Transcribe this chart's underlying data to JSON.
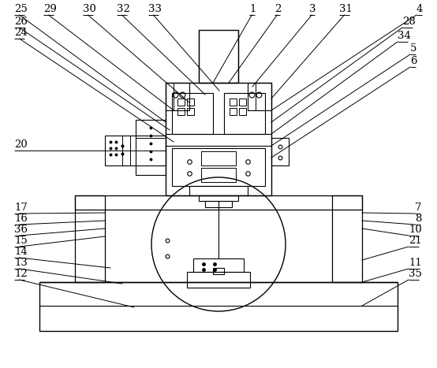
{
  "bg_color": "#ffffff",
  "line_color": "#000000",
  "fig_width": 5.54,
  "fig_height": 4.67,
  "dpi": 100
}
